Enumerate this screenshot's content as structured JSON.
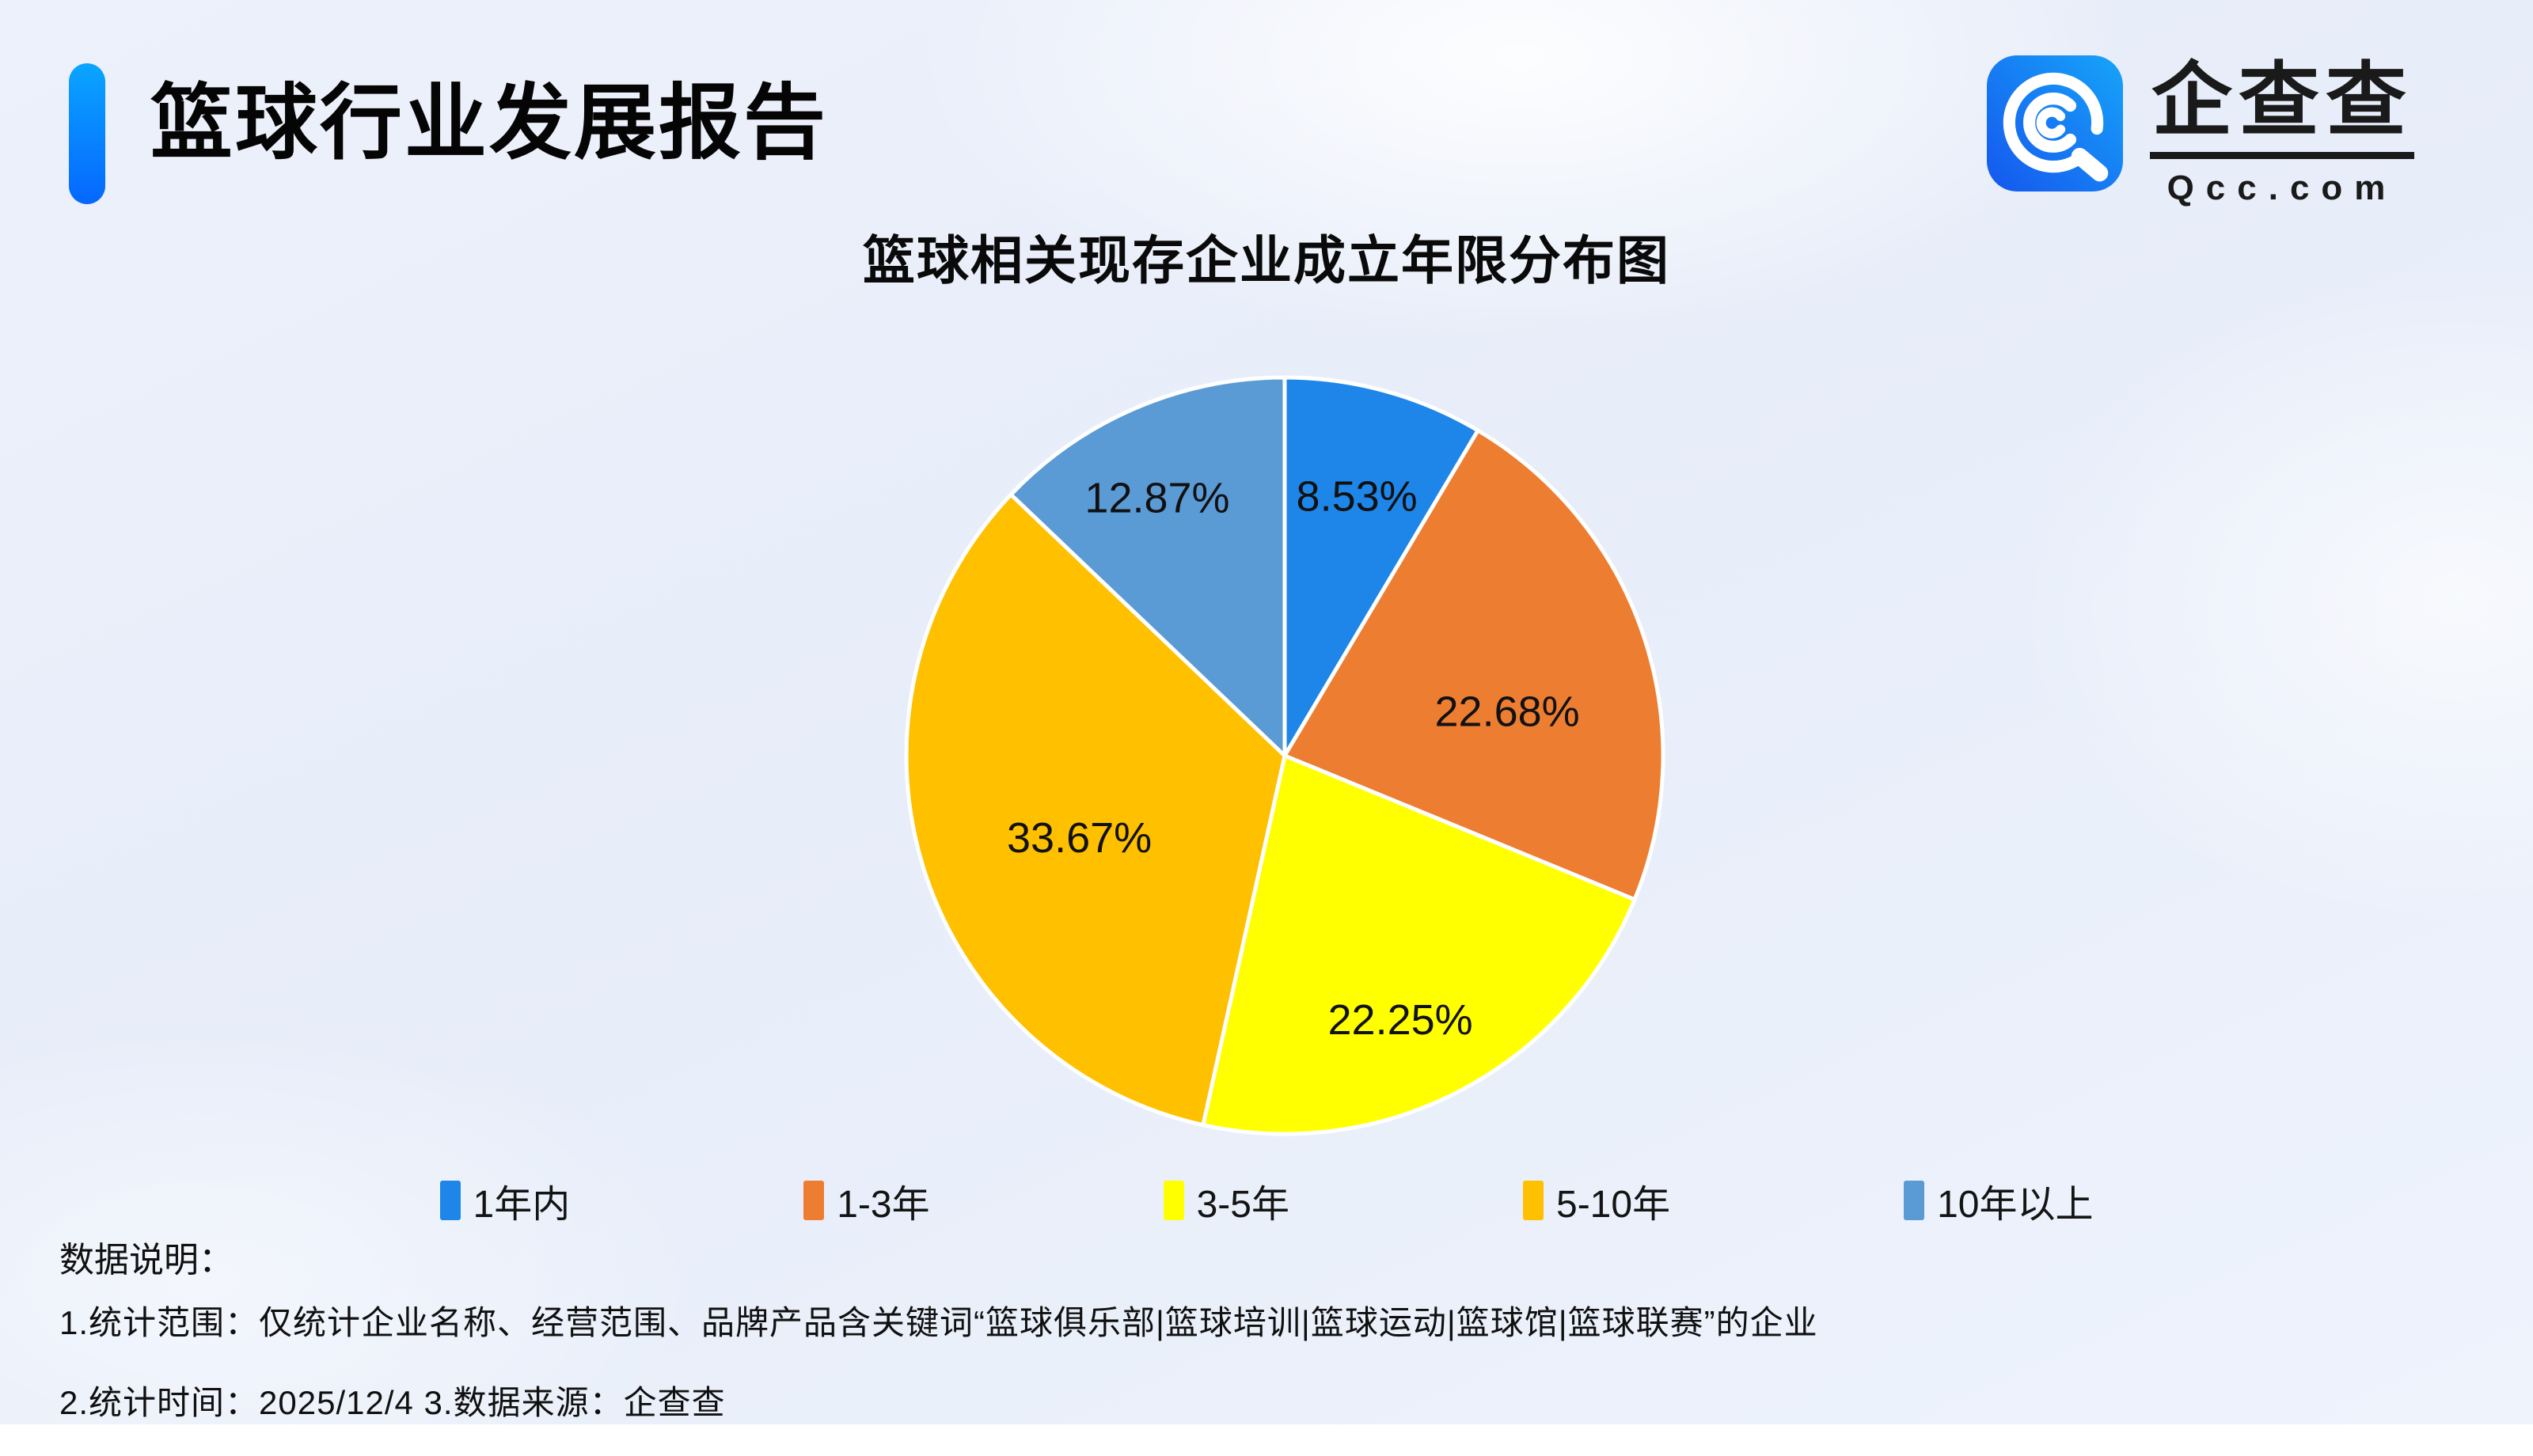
{
  "header": {
    "report_title": "篮球行业发展报告",
    "logo": {
      "brand": "企查查",
      "domain": "Qcc.com",
      "icon": "qcc-magnifier-icon"
    }
  },
  "chart_data": {
    "type": "pie",
    "title": "篮球相关现存企业成立年限分布图",
    "unit": "%",
    "direction": "clockwise",
    "start_angle": "12-oclock",
    "legend_position": "bottom",
    "series": [
      {
        "label": "1年内",
        "value": 8.53,
        "color": "#1E86E8"
      },
      {
        "label": "1-3年",
        "value": 22.68,
        "color": "#ED7D31"
      },
      {
        "label": "3-5年",
        "value": 22.25,
        "color": "#FFFF00"
      },
      {
        "label": "5-10年",
        "value": 33.67,
        "color": "#FFC000"
      },
      {
        "label": "10年以上",
        "value": 12.87,
        "color": "#5B9BD5"
      }
    ]
  },
  "footer": {
    "heading": "数据说明：",
    "notes": [
      "1.统计范围：仅统计企业名称、经营范围、品牌产品含关键词“篮球俱乐部|篮球培训|篮球运动|篮球馆|篮球联赛”的企业",
      "2.统计时间：2025/12/4  3.数据来源：企查查"
    ]
  },
  "colors": {
    "accent_bar_top": "#0AA5FF",
    "accent_bar_bottom": "#0667FF",
    "background": "#EDF1FB",
    "label_text": "#111111",
    "slice_border": "#FFFFFF"
  }
}
